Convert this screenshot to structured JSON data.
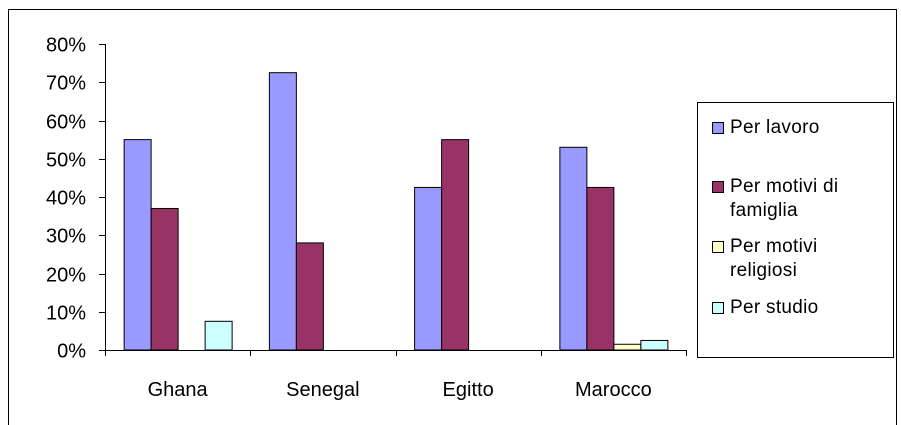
{
  "chart_data": {
    "type": "bar",
    "categories": [
      "Ghana",
      "Senegal",
      "Egitto",
      "Marocco"
    ],
    "y_ticks": [
      "0%",
      "10%",
      "20%",
      "30%",
      "40%",
      "50%",
      "60%",
      "70%",
      "80%"
    ],
    "ylim": [
      0,
      80
    ],
    "grid": false,
    "legend_position": "right",
    "series": [
      {
        "name": "Per lavoro",
        "color": "#9999ff",
        "values": [
          55,
          72.5,
          42.5,
          53
        ]
      },
      {
        "name": "Per motivi di famiglia",
        "color": "#993366",
        "values": [
          37,
          28,
          55,
          42.5
        ]
      },
      {
        "name": "Per motivi religiosi",
        "color": "#ffffcc",
        "values": [
          0,
          0,
          0,
          1.5
        ]
      },
      {
        "name": "Per studio",
        "color": "#ccffff",
        "values": [
          7.5,
          0,
          0,
          2.5
        ]
      }
    ]
  }
}
